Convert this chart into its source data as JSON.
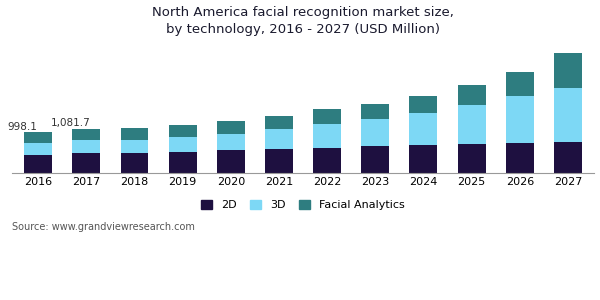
{
  "title": "North America facial recognition market size,\nby technology, 2016 - 2027 (USD Million)",
  "years": [
    "2016",
    "2017",
    "2018",
    "2019",
    "2020",
    "2021",
    "2022",
    "2023",
    "2024",
    "2025",
    "2026",
    "2027"
  ],
  "2d": [
    450,
    490,
    490,
    520,
    550,
    585,
    620,
    650,
    680,
    710,
    740,
    760
  ],
  "3d": [
    280,
    320,
    330,
    370,
    420,
    490,
    590,
    670,
    790,
    970,
    1150,
    1330
  ],
  "fa": [
    268,
    272,
    280,
    295,
    310,
    335,
    365,
    390,
    430,
    490,
    610,
    870
  ],
  "annotations": [
    {
      "year_idx": 0,
      "text": "998.1"
    },
    {
      "year_idx": 1,
      "text": "1,081.7"
    }
  ],
  "colors": {
    "2d": "#1e1040",
    "3d": "#7dd8f5",
    "fa": "#2e7d80"
  },
  "legend_labels": [
    "2D",
    "3D",
    "Facial Analytics"
  ],
  "source": "Source: www.grandviewresearch.com",
  "title_color": "#1a1a2e",
  "background_color": "#ffffff",
  "title_fontsize": 9.5,
  "tick_fontsize": 8,
  "legend_fontsize": 8,
  "source_fontsize": 7,
  "ylim": [
    0,
    3200
  ]
}
